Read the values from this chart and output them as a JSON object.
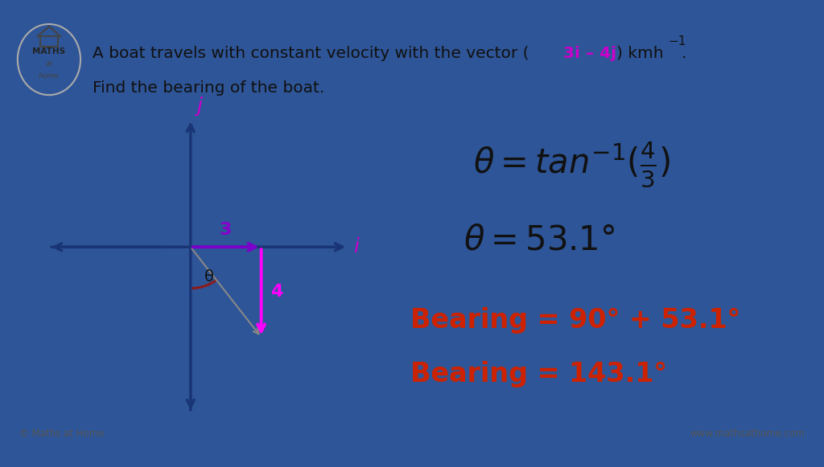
{
  "bg_color": "#ffffff",
  "border_color": "#2e5597",
  "title_line1_pre": "A boat travels with constant velocity with the vector (",
  "title_colored": "3i – 4j",
  "title_line1_post": ") kmh⁻¹.",
  "title_line2": "Find the bearing of the boat.",
  "axis_color": "#1a3575",
  "vector_color": "#7b00cc",
  "component_color": "#ff00ff",
  "arc_color": "#8b1a1a",
  "ij_label_color": "#cc00cc",
  "num_label_color": "#8800cc",
  "bearing_color": "#cc2200",
  "text_color": "#111111",
  "footer_color": "#555555",
  "logo_text1": "© Maths at Home",
  "logo_text2": "www.mathsathome.com"
}
